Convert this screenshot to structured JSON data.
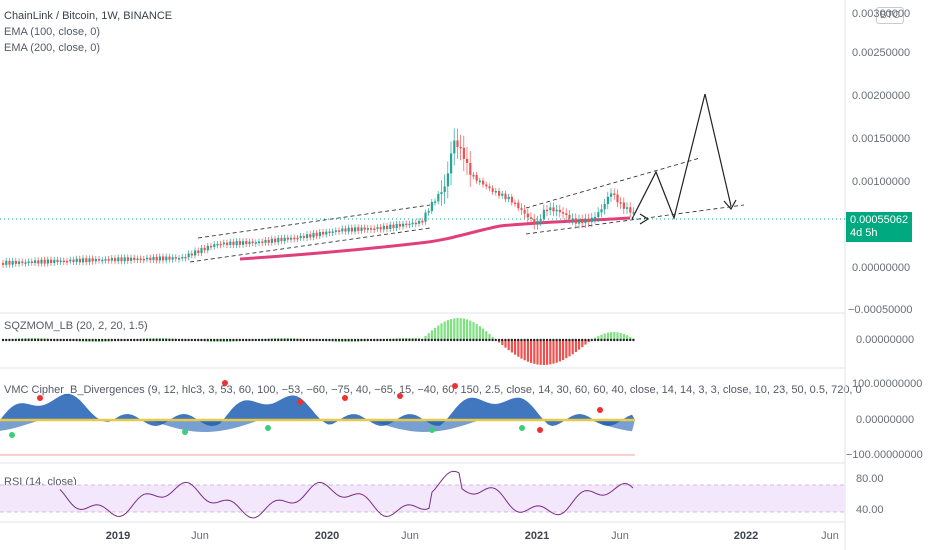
{
  "header": {
    "symbol_line": "ChainLink / Bitcoin, 1W, BINANCE",
    "ema1": "EMA (100, close, 0)",
    "ema2": "EMA (200, close, 0)",
    "currency_badge": "BTC"
  },
  "price_axis": {
    "labels": [
      "0.00300000",
      "0.00250000",
      "0.00200000",
      "0.00150000",
      "0.00100000",
      "0.00000000",
      "−0.00050000"
    ],
    "current_price": "0.00055062",
    "countdown": "4d 5h"
  },
  "indicators": {
    "sqzmom_label": "SQZMOM_LB (20, 2, 20, 1.5)",
    "sqzmom_axis": "0.00000000",
    "vmc_label": "VMC Cipher_B_Divergences (9, 12, hlc3, 3, 53, 60, 100, −53, −60, −75, 40, −65, 15, −40, 60, 150, 2.5, close, 14, 30, 60, 60, 40, close, 14, 14, 3, 3, close, 10, 23, 50, 0.5, 720, 0",
    "vmc_axis": [
      "100.00000000",
      "0.00000000",
      "−100.00000000"
    ],
    "rsi_label": "RSI (14, close)",
    "rsi_axis": [
      "80.00",
      "40.00"
    ]
  },
  "time_axis": {
    "ticks": [
      {
        "label": "2019",
        "bold": true
      },
      {
        "label": "Jun",
        "bold": false
      },
      {
        "label": "2020",
        "bold": true
      },
      {
        "label": "Jun",
        "bold": false
      },
      {
        "label": "2021",
        "bold": true
      },
      {
        "label": "Jun",
        "bold": false
      },
      {
        "label": "2022",
        "bold": true
      },
      {
        "label": "Jun",
        "bold": false
      }
    ]
  },
  "colors": {
    "up": "#26a69a",
    "down": "#ef5350",
    "ema": "#e0407a",
    "price_line": "#00a97f",
    "sqz_up": "#7ee07e",
    "sqz_down": "#ef5350",
    "wave": "#1e5fb3",
    "rsi": "#7b2a8a",
    "rsi_band": "#f3e8fb"
  }
}
